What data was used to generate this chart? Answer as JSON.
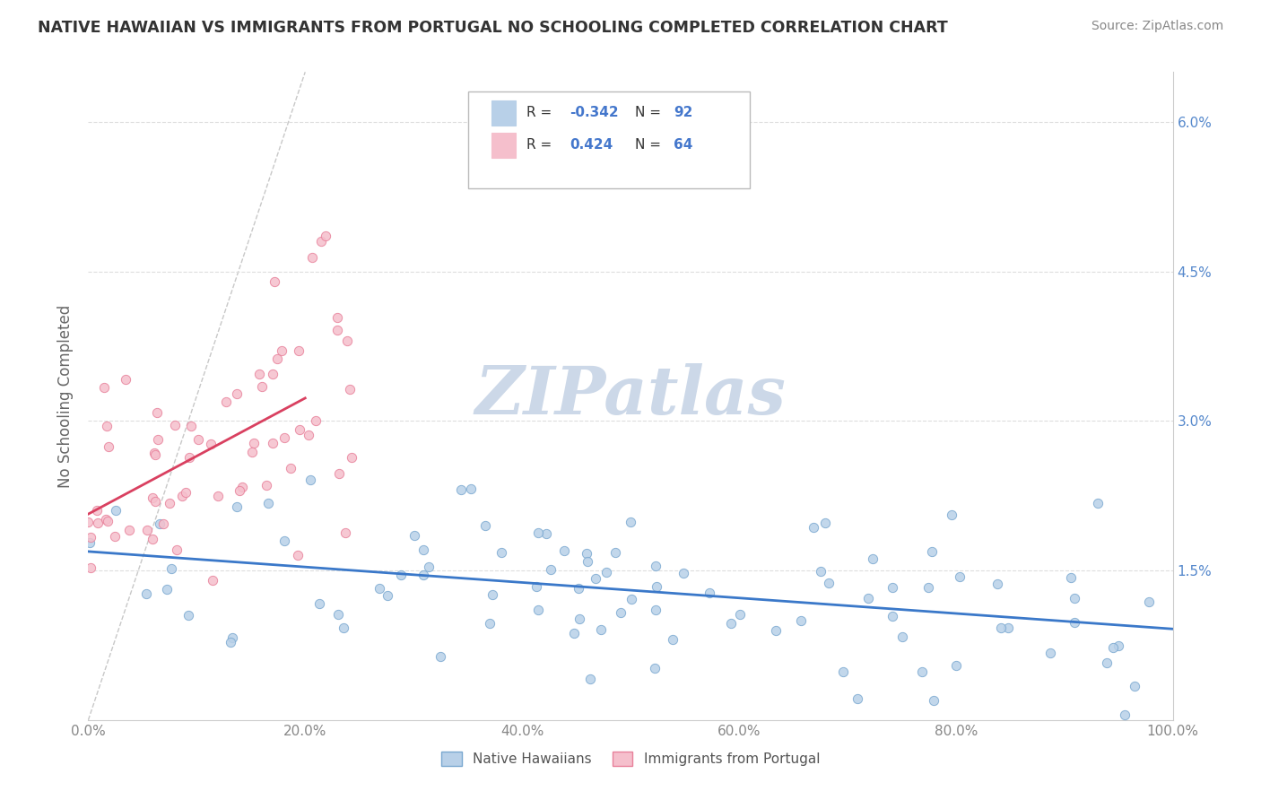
{
  "title": "NATIVE HAWAIIAN VS IMMIGRANTS FROM PORTUGAL NO SCHOOLING COMPLETED CORRELATION CHART",
  "source": "Source: ZipAtlas.com",
  "ylabel": "No Schooling Completed",
  "xmin": 0.0,
  "xmax": 100.0,
  "ymin": 0.0,
  "ymax": 6.5,
  "yticks": [
    0.0,
    1.5,
    3.0,
    4.5,
    6.0
  ],
  "ytick_labels": [
    "",
    "1.5%",
    "3.0%",
    "4.5%",
    "6.0%"
  ],
  "xtick_labels": [
    "0.0%",
    "20.0%",
    "40.0%",
    "60.0%",
    "80.0%",
    "100.0%"
  ],
  "xticks": [
    0,
    20,
    40,
    60,
    80,
    100
  ],
  "series1_color": "#b8d0e8",
  "series1_edge": "#7aa8d0",
  "series2_color": "#f5bfcc",
  "series2_edge": "#e8809a",
  "line1_color": "#3a78c9",
  "line2_color": "#d94060",
  "diag_color": "#c8c8c8",
  "watermark": "ZIPatlas",
  "watermark_color": "#ccd8e8",
  "background": "#ffffff",
  "grid_color": "#dddddd",
  "title_color": "#333333"
}
